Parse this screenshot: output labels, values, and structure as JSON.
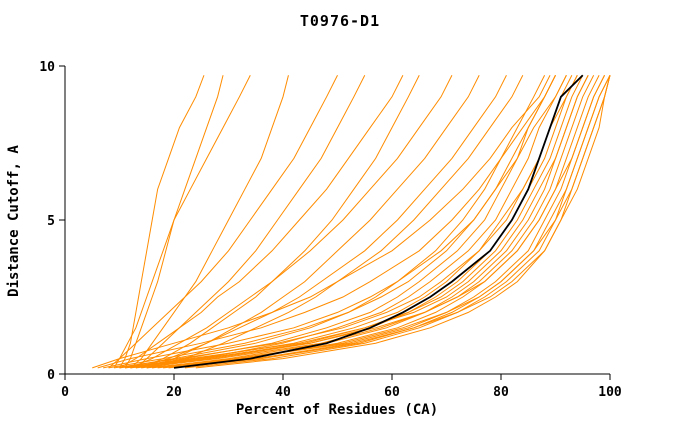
{
  "chart_data": {
    "type": "line",
    "title": "T0976-D1",
    "xlabel": "Percent of Residues (CA)",
    "ylabel": "Distance Cutoff, A",
    "xlim": [
      0,
      100
    ],
    "ylim": [
      0,
      10
    ],
    "x_ticks": [
      0,
      20,
      40,
      60,
      80,
      100
    ],
    "y_ticks": [
      0,
      5,
      10
    ],
    "legend": "none",
    "grid": false,
    "colors": {
      "model": "#ff8c00",
      "highlight": "#000000",
      "axis": "#000000"
    },
    "y_grid": [
      0.2,
      0.5,
      1,
      1.5,
      2,
      2.5,
      3,
      4,
      5,
      6,
      7,
      8,
      9,
      9.7
    ],
    "orange_series_x": [
      [
        10,
        11,
        12,
        12.5,
        13,
        13.5,
        14,
        15,
        16,
        17,
        19,
        21,
        24,
        25.5
      ],
      [
        11,
        12,
        13,
        14,
        15,
        16,
        17,
        18.5,
        20,
        22,
        24,
        26,
        28,
        29
      ],
      [
        9,
        10,
        11.5,
        13,
        14,
        15,
        16,
        18,
        20,
        23,
        26,
        29,
        32,
        34
      ],
      [
        12,
        14,
        16,
        18,
        20,
        22,
        24,
        27,
        30,
        33,
        36,
        38,
        40,
        41
      ],
      [
        8,
        10,
        13,
        16,
        19,
        22,
        25,
        30,
        34,
        38,
        42,
        45,
        48,
        50
      ],
      [
        13,
        15,
        18,
        21,
        24,
        27,
        30,
        35,
        39,
        43,
        47,
        50,
        53,
        55
      ],
      [
        10,
        13,
        17,
        21,
        25,
        28,
        32,
        38,
        43,
        48,
        52,
        56,
        60,
        62
      ],
      [
        14,
        18,
        23,
        27,
        31,
        35,
        38,
        44,
        49,
        53,
        57,
        60,
        63,
        65
      ],
      [
        12,
        16,
        21,
        26,
        30,
        34,
        38,
        45,
        51,
        56,
        61,
        65,
        69,
        71
      ],
      [
        15,
        20,
        26,
        31,
        36,
        40,
        44,
        50,
        56,
        61,
        66,
        70,
        74,
        76
      ],
      [
        13,
        19,
        26,
        32,
        38,
        43,
        47,
        55,
        61,
        66,
        71,
        75,
        79,
        81
      ],
      [
        16,
        22,
        29,
        35,
        41,
        46,
        50,
        58,
        64,
        69,
        74,
        78,
        82,
        84
      ],
      [
        10,
        20,
        35,
        45,
        52,
        57,
        61,
        68,
        73,
        77,
        80,
        83,
        86,
        88
      ],
      [
        12,
        22,
        38,
        48,
        56,
        61,
        65,
        72,
        77,
        80,
        83,
        85,
        88,
        90
      ],
      [
        8,
        18,
        33,
        44,
        52,
        58,
        63,
        70,
        75,
        79,
        82,
        85,
        88,
        90
      ],
      [
        15,
        25,
        40,
        50,
        58,
        63,
        67,
        74,
        79,
        82,
        85,
        87,
        90,
        92
      ],
      [
        11,
        24,
        42,
        53,
        61,
        66,
        70,
        76,
        81,
        84,
        87,
        89,
        91,
        93
      ],
      [
        9,
        21,
        39,
        51,
        59,
        65,
        69,
        76,
        80,
        84,
        87,
        89,
        92,
        94
      ],
      [
        14,
        27,
        45,
        56,
        63,
        68,
        72,
        78,
        82,
        85,
        88,
        90,
        92,
        94
      ],
      [
        12,
        26,
        44,
        55,
        63,
        69,
        73,
        79,
        83,
        86,
        89,
        91,
        93,
        95
      ],
      [
        10,
        23,
        43,
        55,
        64,
        70,
        74,
        80,
        84,
        87,
        90,
        92,
        94,
        96
      ],
      [
        16,
        30,
        48,
        59,
        66,
        71,
        75,
        81,
        85,
        88,
        90,
        92,
        94,
        96
      ],
      [
        13,
        28,
        47,
        58,
        66,
        72,
        76,
        82,
        86,
        89,
        91,
        93,
        95,
        97
      ],
      [
        18,
        33,
        50,
        61,
        68,
        73,
        77,
        83,
        87,
        90,
        92,
        94,
        96,
        98
      ],
      [
        11,
        25,
        45,
        57,
        66,
        72,
        77,
        83,
        87,
        90,
        93,
        95,
        97,
        99
      ],
      [
        17,
        32,
        52,
        63,
        70,
        75,
        79,
        85,
        88,
        91,
        93,
        95,
        97,
        99
      ],
      [
        20,
        36,
        54,
        64,
        71,
        76,
        80,
        86,
        89,
        92,
        94,
        96,
        98,
        100
      ],
      [
        15,
        31,
        51,
        62,
        70,
        76,
        80,
        86,
        90,
        92,
        94,
        96,
        98,
        100
      ],
      [
        22,
        38,
        55,
        65,
        72,
        77,
        81,
        87,
        90,
        93,
        95,
        97,
        99,
        100
      ],
      [
        19,
        35,
        53,
        64,
        72,
        78,
        82,
        88,
        91,
        93,
        95,
        97,
        99,
        100
      ],
      [
        24,
        40,
        57,
        67,
        74,
        79,
        83,
        88,
        91,
        94,
        96,
        98,
        99,
        100
      ],
      [
        7,
        15,
        30,
        42,
        50,
        56,
        61,
        69,
        75,
        79,
        83,
        86,
        90,
        92
      ],
      [
        6,
        12,
        25,
        36,
        44,
        51,
        56,
        65,
        71,
        76,
        80,
        84,
        88,
        90
      ],
      [
        5,
        10,
        20,
        30,
        38,
        45,
        50,
        60,
        67,
        73,
        78,
        82,
        87,
        89
      ]
    ],
    "black_series_x": [
      20,
      34,
      48,
      56,
      62,
      67,
      71,
      78,
      82,
      85,
      87,
      89,
      91,
      95
    ]
  }
}
